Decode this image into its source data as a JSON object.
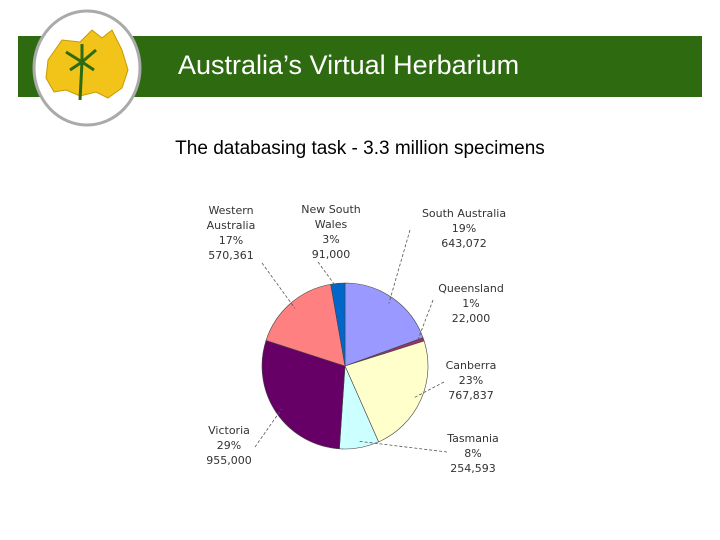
{
  "header": {
    "title": "Australia’s Virtual Herbarium"
  },
  "chart_data": {
    "type": "pie",
    "title": "The databasing task - 3.3 million specimens",
    "categories": [
      "South Australia",
      "Queensland",
      "Canberra",
      "Tasmania",
      "Victoria",
      "Western Australia",
      "New South Wales"
    ],
    "values": [
      643072,
      22000,
      767837,
      254593,
      955000,
      570361,
      91000
    ],
    "value_labels": [
      "643,072",
      "22,000",
      "767,837",
      "254,593",
      "955,000",
      "570,361",
      "91,000"
    ],
    "percent_labels": [
      "19%",
      "1%",
      "23%",
      "8%",
      "29%",
      "17%",
      "3%"
    ],
    "colors": [
      "#9999ff",
      "#993366",
      "#ffffcc",
      "#ccffff",
      "#660066",
      "#ff8080",
      "#0066cc"
    ]
  }
}
